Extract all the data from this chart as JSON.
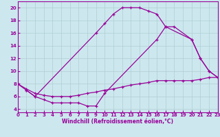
{
  "xlabel": "Windchill (Refroidissement éolien,°C)",
  "background_color": "#cce8ee",
  "line_color": "#990099",
  "grid_color": "#b0cdd4",
  "xlim": [
    0,
    23
  ],
  "ylim": [
    3.5,
    21
  ],
  "xticks": [
    0,
    1,
    2,
    3,
    4,
    5,
    6,
    7,
    8,
    9,
    10,
    11,
    12,
    13,
    14,
    15,
    16,
    17,
    18,
    19,
    20,
    21,
    22,
    23
  ],
  "yticks": [
    4,
    6,
    8,
    10,
    12,
    14,
    16,
    18,
    20
  ],
  "curve_bell_x": [
    0,
    1,
    2,
    9,
    10,
    11,
    12,
    13,
    14,
    15,
    16,
    17,
    18,
    20,
    21,
    22,
    23
  ],
  "curve_bell_y": [
    8,
    7,
    6,
    16,
    17.5,
    19,
    20,
    20,
    20,
    19.5,
    19,
    17,
    17,
    15,
    12,
    10,
    9
  ],
  "curve_flat_x": [
    0,
    1,
    2,
    3,
    4,
    5,
    6,
    7,
    8,
    9,
    10,
    11,
    12,
    13,
    14,
    15,
    16,
    17,
    18,
    19,
    20,
    21,
    22,
    23
  ],
  "curve_flat_y": [
    8,
    7.2,
    6.5,
    6.2,
    6,
    6,
    6,
    6.2,
    6.5,
    6.7,
    7,
    7.2,
    7.5,
    7.8,
    8,
    8.2,
    8.5,
    8.5,
    8.5,
    8.5,
    8.5,
    8.7,
    9,
    9
  ],
  "curve_jagged_x": [
    1,
    2,
    3,
    4,
    5,
    6,
    7,
    8,
    9,
    10,
    16,
    17,
    20,
    21,
    22,
    23
  ],
  "curve_jagged_y": [
    7,
    6,
    5.5,
    5,
    5,
    5,
    5,
    4.5,
    4.5,
    6.5,
    15,
    17,
    15,
    12,
    10,
    9
  ]
}
